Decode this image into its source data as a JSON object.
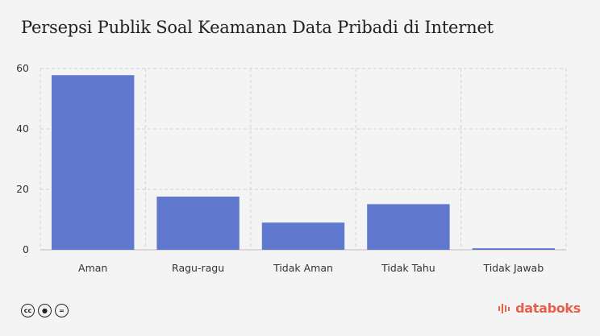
{
  "chart_data": {
    "type": "bar",
    "title": "Persepsi Publik Soal Keamanan Data Pribadi di Internet",
    "categories": [
      "Aman",
      "Ragu-ragu",
      "Tidak Aman",
      "Tidak Tahu",
      "Tidak Jawab"
    ],
    "values": [
      57.8,
      17.6,
      9.0,
      15.1,
      0.5
    ],
    "ylim": [
      0,
      60
    ],
    "yticks": [
      0,
      20,
      40,
      60
    ],
    "grid": true,
    "bar_color": "#6079cf"
  },
  "footer": {
    "brand": "databoks",
    "brand_color": "#e8604c",
    "license_icons": [
      "cc-icon",
      "by-icon",
      "nd-icon"
    ]
  }
}
